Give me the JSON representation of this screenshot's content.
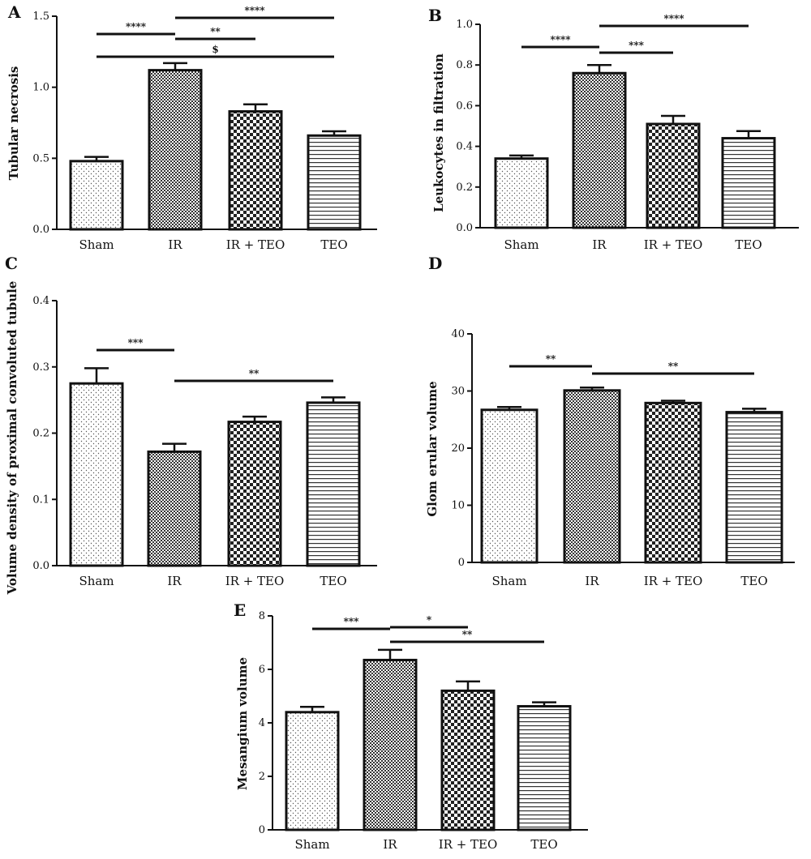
{
  "chart_data": [
    {
      "panel": "A",
      "type": "bar",
      "categories": [
        "Sham",
        "IR",
        "IR + TEO",
        "TEO"
      ],
      "values": [
        0.48,
        1.12,
        0.83,
        0.66
      ],
      "errors": [
        0.03,
        0.05,
        0.05,
        0.03
      ],
      "ylabel": "Tubular necrosis",
      "ylim": [
        0,
        1.5
      ],
      "yticks": [
        0.0,
        0.5,
        1.0,
        1.5
      ],
      "ytick_labels": [
        "0.0",
        "0.5",
        "1.0",
        "1.5"
      ],
      "significance": [
        {
          "from": 0,
          "to": 1,
          "label": "****"
        },
        {
          "from": 1,
          "to": 3,
          "label": "****"
        },
        {
          "from": 1,
          "to": 2,
          "label": "**"
        },
        {
          "from": 0,
          "to": 3,
          "label": "$"
        }
      ]
    },
    {
      "panel": "B",
      "type": "bar",
      "categories": [
        "Sham",
        "IR",
        "IR + TEO",
        "TEO"
      ],
      "values": [
        0.34,
        0.76,
        0.51,
        0.44
      ],
      "errors": [
        0.015,
        0.04,
        0.04,
        0.035
      ],
      "ylabel": "Leukocytes in filtration",
      "ylim": [
        0,
        1.0
      ],
      "yticks": [
        0.0,
        0.2,
        0.4,
        0.6,
        0.8,
        1.0
      ],
      "ytick_labels": [
        "0.0",
        "0.2",
        "0.4",
        "0.6",
        "0.8",
        "1.0"
      ],
      "significance": [
        {
          "from": 0,
          "to": 1,
          "label": "****"
        },
        {
          "from": 1,
          "to": 3,
          "label": "****"
        },
        {
          "from": 1,
          "to": 2,
          "label": "***"
        }
      ]
    },
    {
      "panel": "C",
      "type": "bar",
      "categories": [
        "Sham",
        "IR",
        "IR + TEO",
        "TEO"
      ],
      "values": [
        0.275,
        0.172,
        0.217,
        0.246
      ],
      "errors": [
        0.023,
        0.012,
        0.008,
        0.008
      ],
      "ylabel": "Volume density of proximal convoluted tubule",
      "ylim": [
        0,
        0.4
      ],
      "yticks": [
        0.0,
        0.1,
        0.2,
        0.3,
        0.4
      ],
      "ytick_labels": [
        "0.0",
        "0.1",
        "0.2",
        "0.3",
        "0.4"
      ],
      "significance": [
        {
          "from": 0,
          "to": 1,
          "label": "***"
        },
        {
          "from": 1,
          "to": 3,
          "label": "**"
        }
      ]
    },
    {
      "panel": "D",
      "type": "bar",
      "categories": [
        "Sham",
        "IR",
        "IR + TEO",
        "TEO"
      ],
      "values": [
        26.7,
        30.1,
        27.9,
        26.3
      ],
      "errors": [
        0.5,
        0.5,
        0.4,
        0.6
      ],
      "ylabel": "Glom erular volume",
      "ylim": [
        0,
        40
      ],
      "yticks": [
        0,
        10,
        20,
        30,
        40
      ],
      "ytick_labels": [
        "0",
        "10",
        "20",
        "30",
        "40"
      ],
      "significance": [
        {
          "from": 0,
          "to": 1,
          "label": "**"
        },
        {
          "from": 1,
          "to": 3,
          "label": "**"
        }
      ]
    },
    {
      "panel": "E",
      "type": "bar",
      "categories": [
        "Sham",
        "IR",
        "IR + TEO",
        "TEO"
      ],
      "values": [
        4.4,
        6.35,
        5.2,
        4.62
      ],
      "errors": [
        0.2,
        0.38,
        0.35,
        0.15
      ],
      "ylabel": "Mesangium volume",
      "ylim": [
        0,
        8
      ],
      "yticks": [
        0,
        2,
        4,
        6,
        8
      ],
      "ytick_labels": [
        "0",
        "2",
        "4",
        "6",
        "8"
      ],
      "significance": [
        {
          "from": 0,
          "to": 1,
          "label": "***"
        },
        {
          "from": 1,
          "to": 2,
          "label": "*"
        },
        {
          "from": 1,
          "to": 3,
          "label": "**"
        }
      ]
    }
  ],
  "patterns": [
    "dots",
    "fine-checker",
    "checker",
    "horizontal-lines"
  ]
}
